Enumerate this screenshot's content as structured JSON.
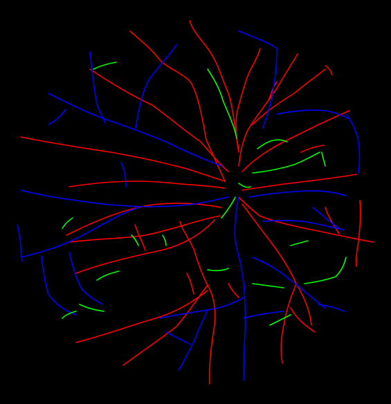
{
  "image": {
    "background_color": "#000000",
    "legend": [
      {
        "class": "artery",
        "color": "#ff0000"
      },
      {
        "class": "vein",
        "color": "#0000ff"
      },
      {
        "class": "uncertain",
        "color": "#00ff00"
      }
    ]
  }
}
